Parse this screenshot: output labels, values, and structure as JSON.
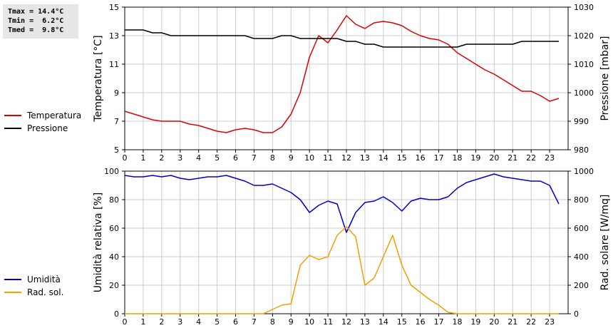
{
  "stats": {
    "tmax": "Tmax = 14.4°C",
    "tmin": "Tmin =  6.2°C",
    "tmed": "Tmed =  9.8°C"
  },
  "colors": {
    "temperature": "#dd0000",
    "pressure": "#000000",
    "humidity": "#0000cc",
    "radiation": "#f0a000",
    "grid": "#cccccc",
    "axis": "#000000"
  },
  "chart_data": [
    {
      "type": "line",
      "x_tick_labels": [
        "0",
        "1",
        "2",
        "3",
        "4",
        "5",
        "6",
        "7",
        "8",
        "9",
        "10",
        "11",
        "12",
        "13",
        "14",
        "15",
        "16",
        "17",
        "18",
        "19",
        "20",
        "21",
        "22",
        "23"
      ],
      "xlim": [
        0,
        24
      ],
      "left_axis": {
        "label": "Temperatura [°C]",
        "ylim": [
          5,
          15
        ],
        "ticks": [
          "5",
          "7",
          "9",
          "11",
          "13",
          "15"
        ]
      },
      "right_axis": {
        "label": "Pressione [mbar]",
        "ylim": [
          980,
          1030
        ],
        "ticks": [
          "980",
          "990",
          "1000",
          "1010",
          "1020",
          "1030"
        ]
      },
      "grid": true,
      "legend_position": "left of chart",
      "series": [
        {
          "name": "Temperatura",
          "axis": "left",
          "color_key": "temperature",
          "x": [
            0,
            0.5,
            1,
            1.5,
            2,
            2.5,
            3,
            3.5,
            4,
            4.5,
            5,
            5.5,
            6,
            6.5,
            7,
            7.5,
            8,
            8.5,
            9,
            9.5,
            10,
            10.5,
            11,
            11.5,
            12,
            12.5,
            13,
            13.5,
            14,
            14.5,
            15,
            15.5,
            16,
            16.5,
            17,
            17.5,
            18,
            18.5,
            19,
            19.5,
            20,
            20.5,
            21,
            21.5,
            22,
            22.5,
            23,
            23.5
          ],
          "y": [
            7.7,
            7.5,
            7.3,
            7.1,
            7.0,
            7.0,
            7.0,
            6.8,
            6.7,
            6.5,
            6.3,
            6.2,
            6.4,
            6.5,
            6.4,
            6.2,
            6.2,
            6.6,
            7.5,
            9.0,
            11.5,
            13.0,
            12.5,
            13.4,
            14.4,
            13.8,
            13.5,
            13.9,
            14.0,
            13.9,
            13.7,
            13.3,
            13.0,
            12.8,
            12.7,
            12.4,
            11.8,
            11.4,
            11.0,
            10.6,
            10.3,
            9.9,
            9.5,
            9.1,
            9.1,
            8.8,
            8.4,
            8.6
          ]
        },
        {
          "name": "Pressione",
          "axis": "right",
          "color_key": "pressure",
          "x": [
            0,
            0.5,
            1,
            1.5,
            2,
            2.5,
            3,
            3.5,
            4,
            4.5,
            5,
            5.5,
            6,
            6.5,
            7,
            7.5,
            8,
            8.5,
            9,
            9.5,
            10,
            10.5,
            11,
            11.5,
            12,
            12.5,
            13,
            13.5,
            14,
            14.5,
            15,
            15.5,
            16,
            16.5,
            17,
            17.5,
            18,
            18.5,
            19,
            19.5,
            20,
            20.5,
            21,
            21.5,
            22,
            22.5,
            23,
            23.5
          ],
          "y": [
            1022,
            1022,
            1022,
            1021,
            1021,
            1020,
            1020,
            1020,
            1020,
            1020,
            1020,
            1020,
            1020,
            1020,
            1019,
            1019,
            1019,
            1020,
            1020,
            1019,
            1019,
            1019,
            1019,
            1019,
            1018,
            1018,
            1017,
            1017,
            1016,
            1016,
            1016,
            1016,
            1016,
            1016,
            1016,
            1016,
            1016,
            1017,
            1017,
            1017,
            1017,
            1017,
            1017,
            1018,
            1018,
            1018,
            1018,
            1018
          ]
        }
      ]
    },
    {
      "type": "line",
      "x_tick_labels": [
        "0",
        "1",
        "2",
        "3",
        "4",
        "5",
        "6",
        "7",
        "8",
        "9",
        "10",
        "11",
        "12",
        "13",
        "14",
        "15",
        "16",
        "17",
        "18",
        "19",
        "20",
        "21",
        "22",
        "23"
      ],
      "xlim": [
        0,
        24
      ],
      "left_axis": {
        "label": "Umidità relativa [%]",
        "ylim": [
          0,
          100
        ],
        "ticks": [
          "0",
          "20",
          "40",
          "60",
          "80",
          "100"
        ]
      },
      "right_axis": {
        "label": "Rad. solare [W/mq]",
        "ylim": [
          0,
          1000
        ],
        "ticks": [
          "0",
          "200",
          "400",
          "600",
          "800",
          "1000"
        ]
      },
      "grid": true,
      "legend_position": "left of chart",
      "series": [
        {
          "name": "Umidità",
          "axis": "left",
          "color_key": "humidity",
          "x": [
            0,
            0.5,
            1,
            1.5,
            2,
            2.5,
            3,
            3.5,
            4,
            4.5,
            5,
            5.5,
            6,
            6.5,
            7,
            7.5,
            8,
            8.5,
            9,
            9.5,
            10,
            10.5,
            11,
            11.5,
            12,
            12.5,
            13,
            13.5,
            14,
            14.5,
            15,
            15.5,
            16,
            16.5,
            17,
            17.5,
            18,
            18.5,
            19,
            19.5,
            20,
            20.5,
            21,
            21.5,
            22,
            22.5,
            23,
            23.5
          ],
          "y": [
            97,
            96,
            96,
            97,
            96,
            97,
            95,
            94,
            95,
            96,
            96,
            97,
            95,
            93,
            90,
            90,
            91,
            88,
            85,
            80,
            71,
            76,
            79,
            77,
            57,
            71,
            78,
            79,
            82,
            78,
            72,
            79,
            81,
            80,
            80,
            82,
            88,
            92,
            94,
            96,
            98,
            96,
            95,
            94,
            93,
            93,
            90,
            77
          ]
        },
        {
          "name": "Rad. sol.",
          "axis": "right",
          "color_key": "radiation",
          "x": [
            0,
            0.5,
            1,
            1.5,
            2,
            2.5,
            3,
            3.5,
            4,
            4.5,
            5,
            5.5,
            6,
            6.5,
            7,
            7.5,
            8,
            8.5,
            9,
            9.5,
            10,
            10.5,
            11,
            11.5,
            12,
            12.5,
            13,
            13.5,
            14,
            14.5,
            15,
            15.5,
            16,
            16.5,
            17,
            17.5,
            18,
            18.5,
            19,
            19.5,
            20,
            20.5,
            21,
            21.5,
            22,
            22.5,
            23,
            23.5
          ],
          "y": [
            0,
            0,
            0,
            0,
            0,
            0,
            0,
            0,
            0,
            0,
            0,
            0,
            0,
            0,
            0,
            0,
            30,
            60,
            70,
            340,
            410,
            380,
            400,
            550,
            610,
            540,
            200,
            250,
            400,
            550,
            340,
            200,
            150,
            100,
            60,
            10,
            0,
            0,
            0,
            0,
            0,
            0,
            0,
            0,
            0,
            0,
            0,
            0
          ]
        }
      ]
    }
  ]
}
